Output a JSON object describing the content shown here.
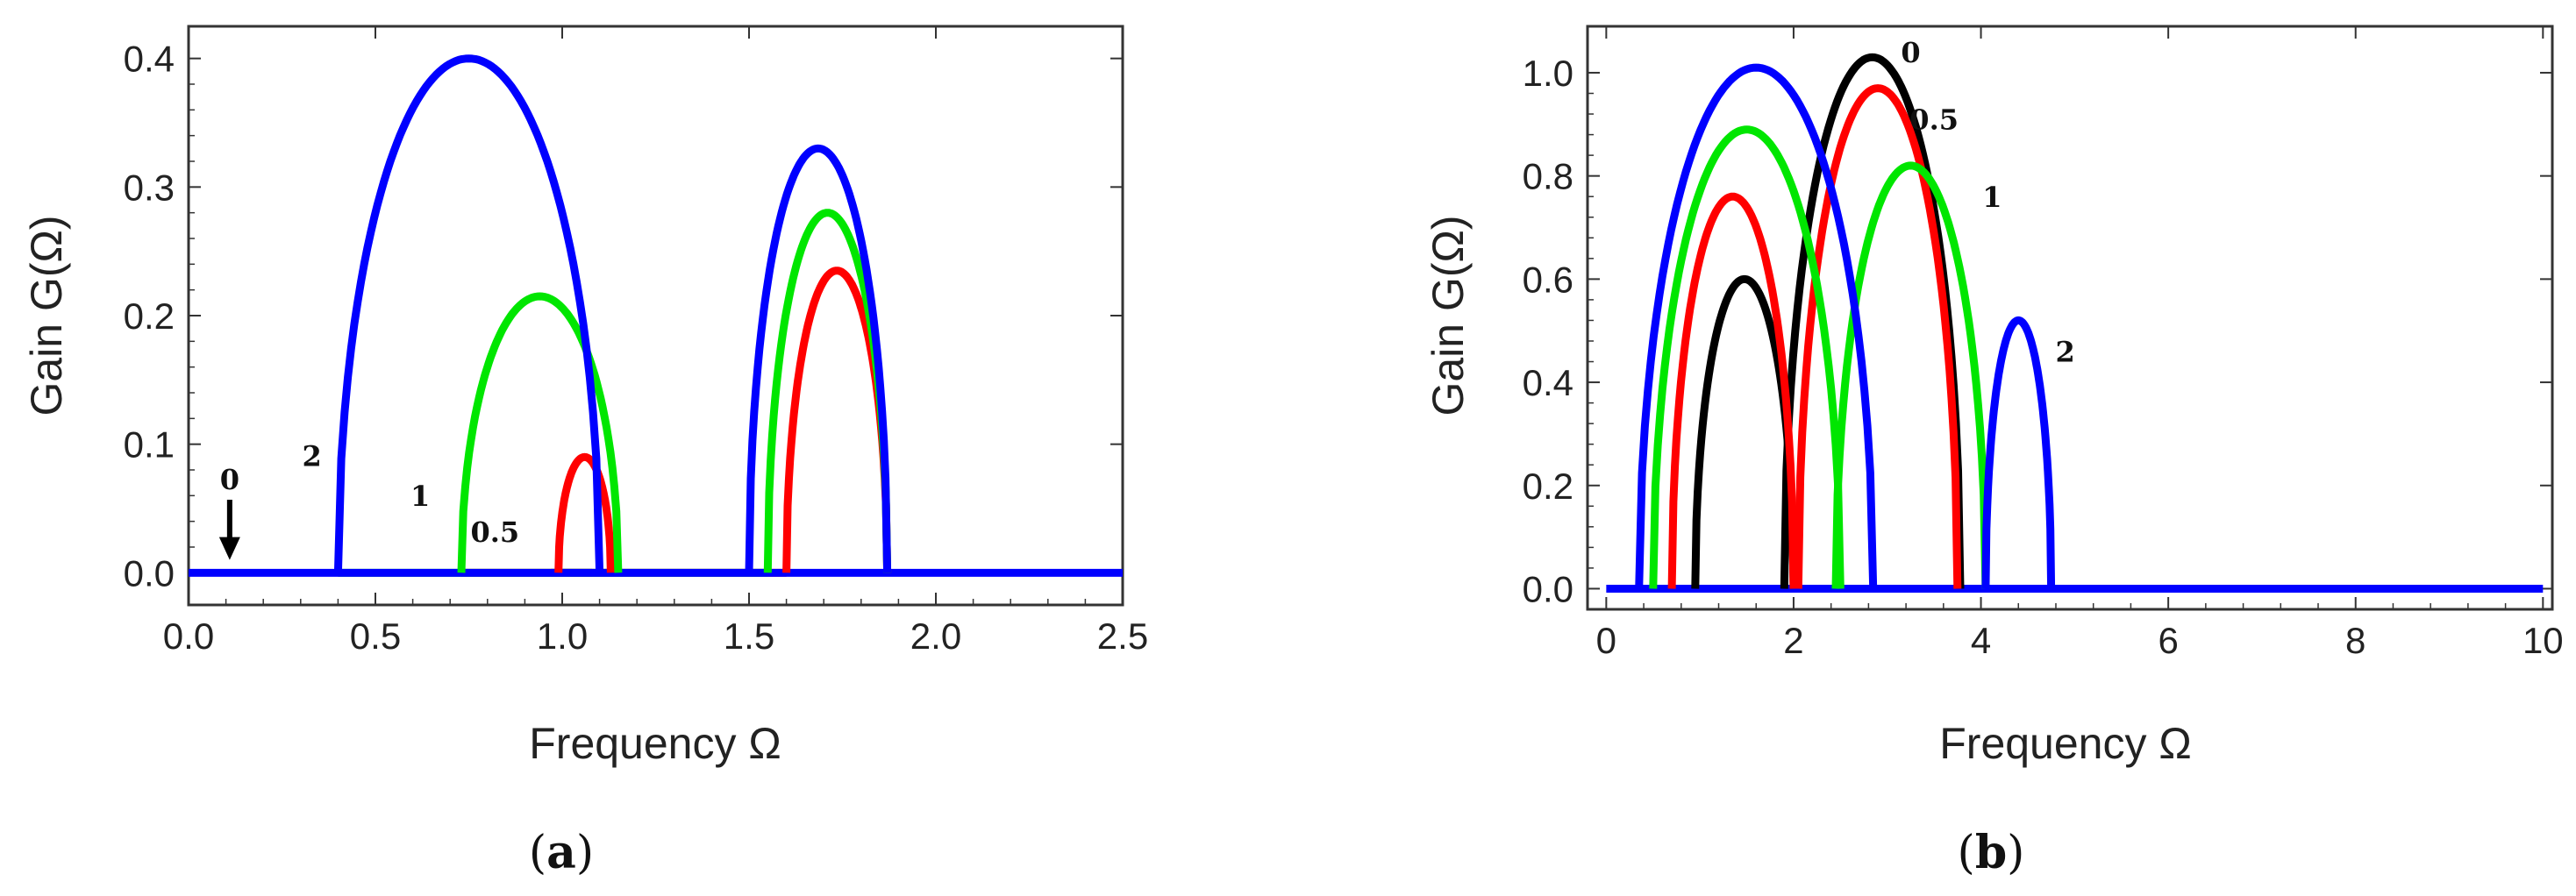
{
  "colors": {
    "0": "#000000",
    "0.5": "#ff0000",
    "1": "#00e600",
    "2": "#0000ff"
  },
  "chart_data": [
    {
      "type": "line",
      "panel_label_text": "(a)",
      "panel_label_letter": "a",
      "xlabel": "Frequency Ω",
      "ylabel": "Gain G(Ω)",
      "xlim": [
        0.0,
        2.5
      ],
      "ylim": [
        -0.025,
        0.425
      ],
      "xticks": [
        0.0,
        0.5,
        1.0,
        1.5,
        2.0,
        2.5
      ],
      "xtick_labels": [
        "0.0",
        "0.5",
        "1.0",
        "1.5",
        "2.0",
        "2.5"
      ],
      "yticks": [
        0.0,
        0.1,
        0.2,
        0.3,
        0.4
      ],
      "ytick_labels": [
        "0.0",
        "0.1",
        "0.2",
        "0.3",
        "0.4"
      ],
      "series": [
        {
          "name": "0",
          "color_key": "0",
          "baseline": [
            0.97,
            1.08
          ],
          "lobes": []
        },
        {
          "name": "0.5",
          "color_key": "0.5",
          "baseline": [
            0.73,
            1.6
          ],
          "lobes": [
            {
              "x0": 0.99,
              "x1": 1.13,
              "peak": 0.09
            },
            {
              "x0": 1.6,
              "x1": 1.87,
              "peak": 0.235
            }
          ]
        },
        {
          "name": "1",
          "color_key": "1",
          "baseline": [
            0.4,
            1.55
          ],
          "lobes": [
            {
              "x0": 0.73,
              "x1": 1.15,
              "peak": 0.215
            },
            {
              "x0": 1.55,
              "x1": 1.87,
              "peak": 0.28
            }
          ]
        },
        {
          "name": "2",
          "color_key": "2",
          "baseline": [
            0.0,
            2.5
          ],
          "lobes": [
            {
              "x0": 0.4,
              "x1": 1.1,
              "peak": 0.4
            },
            {
              "x0": 1.5,
              "x1": 1.87,
              "peak": 0.33
            }
          ]
        }
      ],
      "annotations": [
        {
          "text": "0",
          "x": 0.11,
          "y": 0.065,
          "arrow_to": [
            0.11,
            0.01
          ]
        },
        {
          "text": "2",
          "x": 0.33,
          "y": 0.083
        },
        {
          "text": "1",
          "x": 0.62,
          "y": 0.052
        },
        {
          "text": "0.5",
          "x": 0.82,
          "y": 0.024
        }
      ]
    },
    {
      "type": "line",
      "panel_label_text": "(b)",
      "panel_label_letter": "b",
      "xlabel": "Frequency Ω",
      "ylabel": "Gain G(Ω)",
      "xlim": [
        -0.2,
        10.1
      ],
      "ylim": [
        -0.04,
        1.09
      ],
      "xticks": [
        0,
        2,
        4,
        6,
        8,
        10
      ],
      "xtick_labels": [
        "0",
        "2",
        "4",
        "6",
        "8",
        "10"
      ],
      "yticks": [
        0.0,
        0.2,
        0.4,
        0.6,
        0.8,
        1.0
      ],
      "ytick_labels": [
        "0.0",
        "0.2",
        "0.4",
        "0.6",
        "0.8",
        "1.0"
      ],
      "series": [
        {
          "name": "0",
          "color_key": "0",
          "baseline": [
            0.9,
            3.8
          ],
          "lobes": [
            {
              "x0": 0.95,
              "x1": 2.0,
              "peak": 0.6
            },
            {
              "x0": 1.9,
              "x1": 3.78,
              "peak": 1.03
            }
          ]
        },
        {
          "name": "0.5",
          "color_key": "0.5",
          "baseline": [
            0.6,
            3.9
          ],
          "lobes": [
            {
              "x0": 0.7,
              "x1": 2.0,
              "peak": 0.76
            },
            {
              "x0": 2.05,
              "x1": 3.75,
              "peak": 0.97
            }
          ]
        },
        {
          "name": "1",
          "color_key": "1",
          "baseline": [
            0.35,
            4.75
          ],
          "lobes": [
            {
              "x0": 0.5,
              "x1": 2.5,
              "peak": 0.89
            },
            {
              "x0": 2.45,
              "x1": 4.05,
              "peak": 0.82
            }
          ]
        },
        {
          "name": "2",
          "color_key": "2",
          "baseline": [
            0.0,
            10.0
          ],
          "lobes": [
            {
              "x0": 0.35,
              "x1": 2.85,
              "peak": 1.01
            },
            {
              "x0": 4.05,
              "x1": 4.75,
              "peak": 0.52
            }
          ]
        }
      ],
      "annotations": [
        {
          "text": "0",
          "x": 3.25,
          "y": 1.02
        },
        {
          "text": "0.5",
          "x": 3.5,
          "y": 0.89
        },
        {
          "text": "1",
          "x": 4.12,
          "y": 0.74
        },
        {
          "text": "2",
          "x": 4.9,
          "y": 0.44
        }
      ]
    }
  ]
}
